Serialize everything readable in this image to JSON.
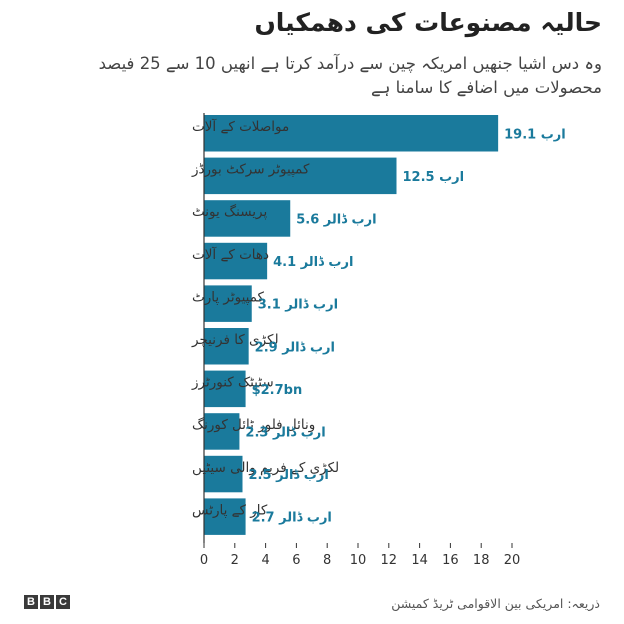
{
  "chart_data": {
    "type": "bar",
    "orientation": "horizontal",
    "title": "حالیہ مصنوعات کی دھمکیاں",
    "subtitle": "وہ دس اشیا جنھیں امریکہ چین سے درآمد کرتا ہے انھیں 10 سے 25 فیصد محصولات میں اضافے کا سامنا ہے",
    "categories": [
      "مواصلات کے آلات",
      "کمپیوٹر سرکٹ بورڈز",
      "پریسنگ یونٹ",
      "دھات کے آلات",
      "کمپیوٹر پارٹ",
      "لکڑی کا فرنیچر",
      "سٹیٹک کنورٹرز",
      "ونائل فلور ٹائل کورنگ",
      "لکڑی کے فریم والی سیٹیں",
      "کار کے پارٹس"
    ],
    "values": [
      19.1,
      12.5,
      5.6,
      4.1,
      3.1,
      2.9,
      2.7,
      2.3,
      2.5,
      2.7
    ],
    "data_labels": [
      "19.1 ارب",
      "12.5 ارب",
      "5.6 ارب ڈالر",
      "4.1 ارب ڈالر",
      "3.1 ارب ڈالر",
      "2.9 ارب ڈالر",
      "$2.7bn",
      "2.3 ارب ڈالر",
      "2.5 ارب ڈالر",
      "2.7 ارب ڈالر"
    ],
    "xticks": [
      "0",
      "2",
      "4",
      "6",
      "8",
      "10",
      "12",
      "14",
      "16",
      "18",
      "20"
    ],
    "xlim": [
      0,
      20
    ],
    "grid": false,
    "bar_color": "#1a7a9c",
    "label_color": "#1a7a9c"
  },
  "footer": {
    "logo": [
      "B",
      "B",
      "C"
    ],
    "source": "ذریعہ: امریکی بین الاقوامی ٹریڈ کمیشن"
  }
}
